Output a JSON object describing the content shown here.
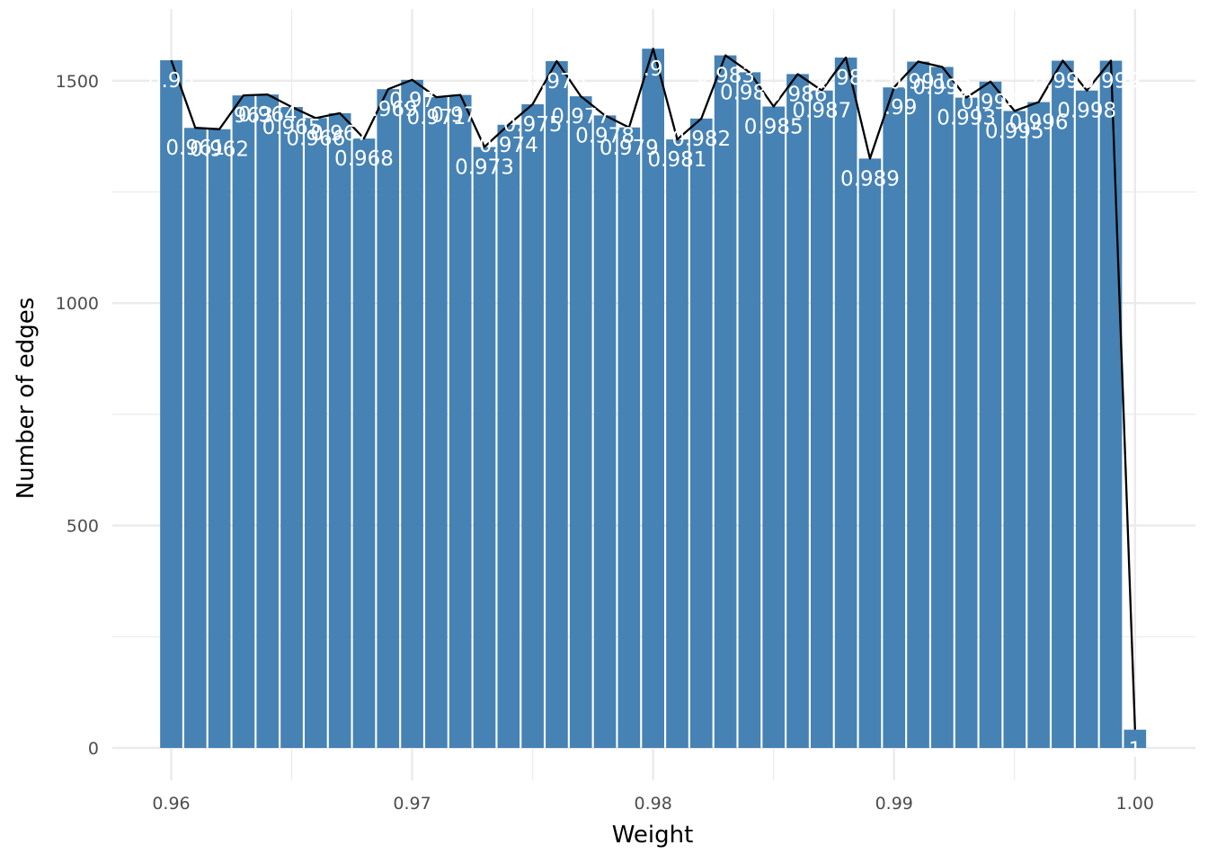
{
  "chart_data": {
    "type": "bar",
    "title": "",
    "xlabel": "Weight",
    "ylabel": "Number of edges",
    "xlim": [
      0.9578,
      1.0025
    ],
    "ylim": [
      -75,
      1650
    ],
    "x_ticks": [
      {
        "value": 0.96,
        "label": "0.96"
      },
      {
        "value": 0.97,
        "label": "0.97"
      },
      {
        "value": 0.98,
        "label": "0.98"
      },
      {
        "value": 0.99,
        "label": "0.99"
      },
      {
        "value": 1.0,
        "label": "1.00"
      }
    ],
    "y_ticks": [
      {
        "value": 0,
        "label": "0"
      },
      {
        "value": 500,
        "label": "500"
      },
      {
        "value": 1000,
        "label": "1000"
      },
      {
        "value": 1500,
        "label": "1500"
      }
    ],
    "minor_x": [
      0.965,
      0.975,
      0.985,
      0.995
    ],
    "minor_y": [
      250,
      750,
      1250
    ],
    "grid": true,
    "bar_width": 0.00092,
    "bar_color": "#4682B4",
    "line_color": "#000000",
    "grid_color": "#ebebeb",
    "bars": [
      {
        "x": 0.96,
        "value": 1546,
        "label": "0.96"
      },
      {
        "x": 0.961,
        "value": 1394,
        "label": "0.961"
      },
      {
        "x": 0.962,
        "value": 1391,
        "label": "0.962"
      },
      {
        "x": 0.963,
        "value": 1467,
        "label": "0.963"
      },
      {
        "x": 0.964,
        "value": 1469,
        "label": "0.964"
      },
      {
        "x": 0.965,
        "value": 1441,
        "label": "0.965"
      },
      {
        "x": 0.966,
        "value": 1416,
        "label": "0.966"
      },
      {
        "x": 0.967,
        "value": 1427,
        "label": "0.967"
      },
      {
        "x": 0.968,
        "value": 1370,
        "label": "0.968"
      },
      {
        "x": 0.969,
        "value": 1481,
        "label": "0.969"
      },
      {
        "x": 0.97,
        "value": 1502,
        "label": "0.97"
      },
      {
        "x": 0.971,
        "value": 1463,
        "label": "0.971"
      },
      {
        "x": 0.972,
        "value": 1468,
        "label": "0.972"
      },
      {
        "x": 0.973,
        "value": 1351,
        "label": "0.973"
      },
      {
        "x": 0.974,
        "value": 1401,
        "label": "0.974"
      },
      {
        "x": 0.975,
        "value": 1447,
        "label": "0.975"
      },
      {
        "x": 0.976,
        "value": 1544,
        "label": "0.976"
      },
      {
        "x": 0.977,
        "value": 1465,
        "label": "0.977"
      },
      {
        "x": 0.978,
        "value": 1422,
        "label": "0.978"
      },
      {
        "x": 0.979,
        "value": 1395,
        "label": "0.979"
      },
      {
        "x": 0.98,
        "value": 1572,
        "label": "0.98"
      },
      {
        "x": 0.981,
        "value": 1368,
        "label": "0.981"
      },
      {
        "x": 0.982,
        "value": 1415,
        "label": "0.982"
      },
      {
        "x": 0.983,
        "value": 1557,
        "label": "0.983"
      },
      {
        "x": 0.984,
        "value": 1519,
        "label": "0.984"
      },
      {
        "x": 0.985,
        "value": 1442,
        "label": "0.985"
      },
      {
        "x": 0.986,
        "value": 1515,
        "label": "0.986"
      },
      {
        "x": 0.987,
        "value": 1478,
        "label": "0.987"
      },
      {
        "x": 0.988,
        "value": 1552,
        "label": "0.988"
      },
      {
        "x": 0.989,
        "value": 1325,
        "label": "0.989"
      },
      {
        "x": 0.99,
        "value": 1485,
        "label": "0.99"
      },
      {
        "x": 0.991,
        "value": 1543,
        "label": "0.991"
      },
      {
        "x": 0.992,
        "value": 1531,
        "label": "0.992"
      },
      {
        "x": 0.993,
        "value": 1462,
        "label": "0.993"
      },
      {
        "x": 0.994,
        "value": 1498,
        "label": "0.994"
      },
      {
        "x": 0.995,
        "value": 1432,
        "label": "0.995"
      },
      {
        "x": 0.996,
        "value": 1452,
        "label": "0.996"
      },
      {
        "x": 0.997,
        "value": 1545,
        "label": "0.997"
      },
      {
        "x": 0.998,
        "value": 1478,
        "label": "0.998"
      },
      {
        "x": 0.999,
        "value": 1545,
        "label": "0.999"
      },
      {
        "x": 1.0,
        "value": 41,
        "label": "1"
      }
    ]
  }
}
